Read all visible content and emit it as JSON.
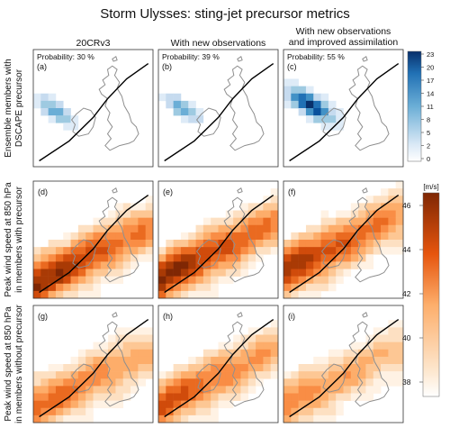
{
  "title": "Storm Ulysses: sting-jet precursor metrics",
  "columns": [
    "20CRv3",
    "With new observations",
    "With new observations\nand improved assimilation"
  ],
  "row_labels": [
    "Ensemble members with\nDSCAPE precursor",
    "Peak wind speed at 850 hPa\nin members with precursor",
    "Peak wind speed at 850 hPa\nin members without precursor"
  ],
  "panels": [
    {
      "letter": "(a)",
      "row": 0,
      "col": 0,
      "prob": "Probability: 30 %"
    },
    {
      "letter": "(b)",
      "row": 0,
      "col": 1,
      "prob": "Probability: 39 %"
    },
    {
      "letter": "(c)",
      "row": 0,
      "col": 2,
      "prob": "Probability: 55 %"
    },
    {
      "letter": "(d)",
      "row": 1,
      "col": 0
    },
    {
      "letter": "(e)",
      "row": 1,
      "col": 1
    },
    {
      "letter": "(f)",
      "row": 1,
      "col": 2
    },
    {
      "letter": "(g)",
      "row": 2,
      "col": 0
    },
    {
      "letter": "(h)",
      "row": 2,
      "col": 1
    },
    {
      "letter": "(i)",
      "row": 2,
      "col": 2
    }
  ],
  "colorbar_top": {
    "ticks": [
      "23",
      "20",
      "17",
      "14",
      "11",
      "8",
      "5",
      "2",
      "0"
    ],
    "colors": [
      "#c6dbef",
      "#08306b"
    ]
  },
  "colorbar_bottom": {
    "unit": "[m/s]",
    "ticks": [
      "46",
      "44",
      "42",
      "40",
      "38"
    ],
    "colors": [
      "#fde8d0",
      "#7f2704"
    ]
  },
  "chart_data": [
    {
      "type": "heatmap",
      "title": "Ensemble members with DSCAPE precursor",
      "panels": [
        {
          "label": "(a)",
          "column": "20CRv3",
          "probability_percent": 30,
          "max_members": 10,
          "core": "south-west of Ireland, elongated south-west to north-east"
        },
        {
          "label": "(b)",
          "column": "With new observations",
          "probability_percent": 39,
          "max_members": 12,
          "core": "west of Ireland, elongated south-west to north-east"
        },
        {
          "label": "(c)",
          "column": "With new observations and improved assimilation",
          "probability_percent": 55,
          "max_members": 23,
          "core": "west of Ireland, elongated south-west to north-east"
        }
      ],
      "colorbar": {
        "min": 0,
        "max": 23,
        "ticks": [
          0,
          2,
          5,
          8,
          11,
          14,
          17,
          20,
          23
        ]
      }
    },
    {
      "type": "heatmap",
      "title": "Peak wind speed at 850 hPa",
      "unit": "m/s",
      "panels": [
        {
          "label": "(d)",
          "subset": "members with precursor",
          "column": "20CRv3",
          "range_m_s": [
            38,
            46
          ]
        },
        {
          "label": "(e)",
          "subset": "members with precursor",
          "column": "With new observations",
          "range_m_s": [
            38,
            46
          ]
        },
        {
          "label": "(f)",
          "subset": "members with precursor",
          "column": "With new observations and improved assimilation",
          "range_m_s": [
            38,
            46
          ]
        },
        {
          "label": "(g)",
          "subset": "members without precursor",
          "column": "20CRv3",
          "range_m_s": [
            38,
            44
          ]
        },
        {
          "label": "(h)",
          "subset": "members without precursor",
          "column": "With new observations",
          "range_m_s": [
            38,
            45
          ]
        },
        {
          "label": "(i)",
          "subset": "members without precursor",
          "column": "With new observations and improved assimilation",
          "range_m_s": [
            38,
            43
          ]
        }
      ],
      "colorbar": {
        "min": 37,
        "max": 47,
        "ticks": [
          38,
          40,
          42,
          44,
          46
        ]
      }
    }
  ]
}
